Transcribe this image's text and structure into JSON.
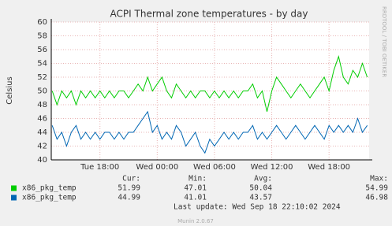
{
  "chart_data": {
    "type": "line",
    "title": "ACPI Thermal zone temperatures - by day",
    "y_label": "Celsius",
    "side_note": "RRDTOOL / TOBI OETIKER",
    "x": [
      13,
      13.5,
      14,
      14.5,
      15,
      15.5,
      16,
      16.5,
      17,
      17.5,
      18,
      18.5,
      19,
      19.5,
      20,
      20.5,
      21,
      21.5,
      22,
      22.5,
      23,
      23.5,
      24,
      24.5,
      25,
      25.5,
      26,
      26.5,
      27,
      27.5,
      28,
      28.5,
      29,
      29.5,
      30,
      30.5,
      31,
      31.5,
      32,
      32.5,
      33,
      33.5,
      34,
      34.5,
      35,
      35.5,
      36,
      36.5,
      37,
      37.5,
      38,
      38.5,
      39,
      39.5,
      40,
      40.5,
      41,
      41.5,
      42,
      42.5,
      43,
      43.5,
      44,
      44.5,
      45,
      45.5,
      46
    ],
    "xlim": [
      12.9,
      46.2
    ],
    "xticks": [
      {
        "value": 18,
        "label": "Tue 18:00"
      },
      {
        "value": 24,
        "label": "Wed 00:00"
      },
      {
        "value": 30,
        "label": "Wed 06:00"
      },
      {
        "value": 36,
        "label": "Wed 12:00"
      },
      {
        "value": 42,
        "label": "Wed 18:00"
      }
    ],
    "ylim": [
      40,
      60
    ],
    "yticks": [
      40,
      42,
      44,
      46,
      48,
      50,
      52,
      54,
      56,
      58,
      60
    ],
    "grid": true,
    "series": [
      {
        "name": "x86_pkg_temp",
        "color": "#00cc00",
        "values": [
          50,
          48,
          50,
          49,
          50,
          48,
          50,
          49,
          50,
          49,
          50,
          49,
          50,
          49,
          50,
          50,
          49,
          50,
          51,
          50,
          52,
          50,
          51,
          52,
          50,
          49,
          51,
          50,
          49,
          50,
          49,
          50,
          50,
          49,
          50,
          49,
          50,
          49,
          50,
          49,
          50,
          50,
          51,
          49,
          50,
          47,
          50,
          52,
          51,
          50,
          49,
          50,
          51,
          50,
          49,
          50,
          51,
          52,
          50,
          53,
          55,
          52,
          51,
          53,
          52,
          54,
          52
        ]
      },
      {
        "name": "x86_pkg_temp",
        "color": "#0066b3",
        "values": [
          45,
          43,
          44,
          42,
          44,
          45,
          43,
          44,
          43,
          44,
          43,
          44,
          44,
          43,
          44,
          43,
          44,
          44,
          45,
          46,
          47,
          44,
          45,
          43,
          44,
          43,
          45,
          44,
          42,
          43,
          44,
          42,
          41,
          43,
          42,
          43,
          44,
          43,
          44,
          43,
          44,
          44,
          45,
          43,
          44,
          43,
          44,
          45,
          44,
          43,
          44,
          45,
          44,
          43,
          44,
          45,
          44,
          43,
          45,
          44,
          45,
          44,
          45,
          44,
          46,
          44,
          45
        ]
      }
    ],
    "stats": {
      "headers": [
        "Cur:",
        "Min:",
        "Avg:",
        "Max:"
      ],
      "rows": [
        [
          51.99,
          47.01,
          50.04,
          54.99
        ],
        [
          44.99,
          41.01,
          43.57,
          46.98
        ]
      ]
    },
    "last_update": "Last update: Wed Sep 18 22:10:02 2024",
    "footer": "Munin 2.0.67"
  }
}
